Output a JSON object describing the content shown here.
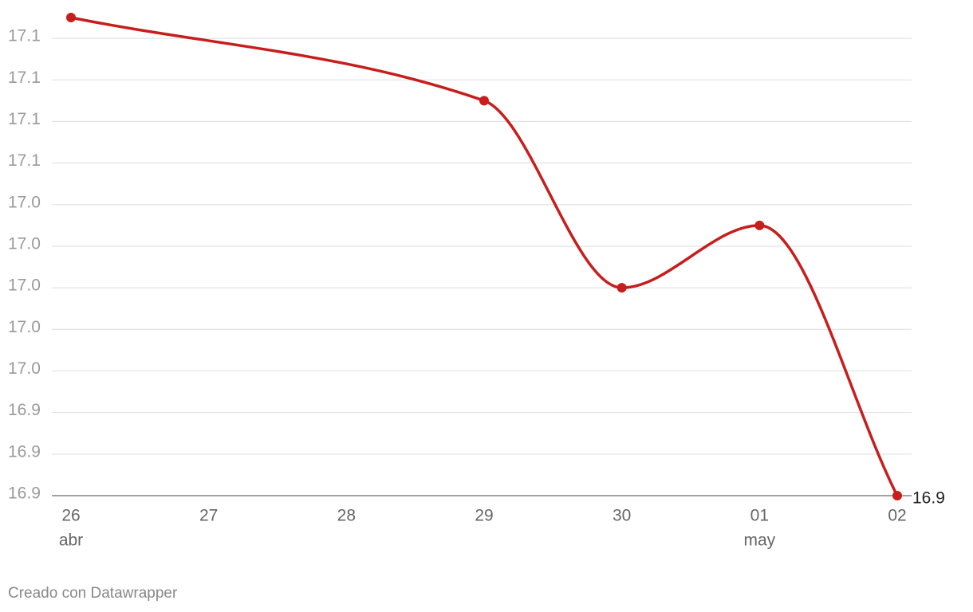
{
  "chart_data": {
    "type": "line",
    "categories": [
      "26",
      "27",
      "28",
      "29",
      "30",
      "01",
      "02"
    ],
    "category_sublabels": [
      "abr",
      null,
      null,
      null,
      null,
      "may",
      null
    ],
    "x": [
      "26",
      "29",
      "30",
      "01",
      "02"
    ],
    "series": [
      {
        "color": "#c71e1d",
        "values": [
          17.13,
          17.09,
          17.0,
          17.03,
          16.9
        ],
        "value_labels": [
          null,
          null,
          null,
          null,
          "16.9"
        ]
      }
    ],
    "ylim": [
      16.9,
      17.13
    ],
    "yticks": [
      {
        "value": 16.9,
        "label": "16.9"
      },
      {
        "value": 16.92,
        "label": "16.9"
      },
      {
        "value": 16.94,
        "label": "16.9"
      },
      {
        "value": 16.96,
        "label": "17.0"
      },
      {
        "value": 16.98,
        "label": "17.0"
      },
      {
        "value": 17.0,
        "label": "17.0"
      },
      {
        "value": 17.02,
        "label": "17.0"
      },
      {
        "value": 17.04,
        "label": "17.0"
      },
      {
        "value": 17.06,
        "label": "17.1"
      },
      {
        "value": 17.08,
        "label": "17.1"
      },
      {
        "value": 17.1,
        "label": "17.1"
      },
      {
        "value": 17.12,
        "label": "17.1"
      }
    ],
    "grid": true,
    "footer": "Creado con Datawrapper"
  }
}
